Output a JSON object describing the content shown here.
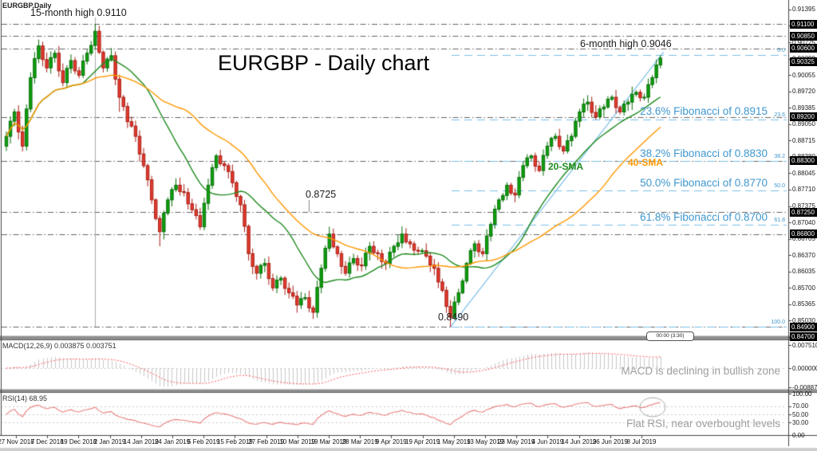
{
  "window": {
    "symbol_label": "EURGBP,Daily",
    "countdown": "00:00 (3:30)"
  },
  "title": "EURGBP - Daily chart",
  "annotations": {
    "high_15m": "15-month high 0.9110",
    "high_6m": "6-month high 0.9046",
    "level_8725": "0.8725",
    "level_8490": "0.8490",
    "sma20": "20-SMA",
    "sma40": "40-SMA",
    "fib_236": "23.6% Fibonacci of 0.8915",
    "fib_382": "38.2% Fibonacci of 0.8830",
    "fib_500": "50.0% Fibonacci of 0.8770",
    "fib_618": "61.8% Fibonacci of 0.8700",
    "macd_note": "MACD is declining in bullish zone",
    "rsi_note": "Flat RSI, near overbought levels"
  },
  "chart_data": {
    "type": "candlestick",
    "symbol": "EURGBP",
    "timeframe": "Daily",
    "title": "EURGBP - Daily chart",
    "x_labels": [
      "27 Nov 2018",
      "7 Dec 2018",
      "19 Dec 2018",
      "2 Jan 2019",
      "14 Jan 2019",
      "24 Jan 2019",
      "5 Feb 2019",
      "15 Feb 2019",
      "27 Feb 2019",
      "10 Mar 2019",
      "19 Mar 2019",
      "28 Mar 2019",
      "9 Apr 2019",
      "19 Apr 2019",
      "1 May 2019",
      "13 May 2019",
      "23 May 2019",
      "4 Jun 2019",
      "14 Jun 2019",
      "26 Jun 2019",
      "8 Jul 2019"
    ],
    "first_open": 0.886,
    "closes": [
      0.888,
      0.8911,
      0.893,
      0.8889,
      0.886,
      0.8936,
      0.9,
      0.9039,
      0.9065,
      0.9037,
      0.902,
      0.9041,
      0.905,
      0.9014,
      0.899,
      0.9019,
      0.9035,
      0.9014,
      0.9005,
      0.9034,
      0.905,
      0.9066,
      0.9095,
      0.9052,
      0.902,
      0.9038,
      0.9045,
      0.8997,
      0.896,
      0.8941,
      0.891,
      0.8901,
      0.888,
      0.8844,
      0.882,
      0.8791,
      0.875,
      0.8712,
      0.8685,
      0.8723,
      0.875,
      0.8771,
      0.878,
      0.8767,
      0.8765,
      0.8742,
      0.873,
      0.8718,
      0.8695,
      0.8743,
      0.878,
      0.8816,
      0.884,
      0.8824,
      0.882,
      0.8808,
      0.8785,
      0.8757,
      0.874,
      0.8696,
      0.864,
      0.8614,
      0.86,
      0.8616,
      0.862,
      0.8589,
      0.857,
      0.8586,
      0.859,
      0.8569,
      0.856,
      0.8553,
      0.8535,
      0.8548,
      0.855,
      0.8529,
      0.852,
      0.8571,
      0.861,
      0.8651,
      0.868,
      0.8654,
      0.864,
      0.8614,
      0.86,
      0.8621,
      0.863,
      0.8617,
      0.8615,
      0.8641,
      0.8655,
      0.8642,
      0.864,
      0.8624,
      0.862,
      0.8643,
      0.8655,
      0.8662,
      0.868,
      0.8664,
      0.866,
      0.8647,
      0.8645,
      0.8646,
      0.8635,
      0.8617,
      0.861,
      0.8582,
      0.8565,
      0.8532,
      0.851,
      0.8541,
      0.856,
      0.8584,
      0.862,
      0.8646,
      0.866,
      0.8644,
      0.864,
      0.8676,
      0.87,
      0.8731,
      0.875,
      0.8759,
      0.878,
      0.8764,
      0.876,
      0.8796,
      0.882,
      0.8836,
      0.884,
      0.8819,
      0.881,
      0.8841,
      0.886,
      0.8876,
      0.888,
      0.8859,
      0.885,
      0.8871,
      0.888,
      0.8911,
      0.893,
      0.8946,
      0.895,
      0.8929,
      0.892,
      0.8936,
      0.894,
      0.8956,
      0.896,
      0.8939,
      0.893,
      0.8946,
      0.895,
      0.8966,
      0.897,
      0.8959,
      0.896,
      0.8986,
      0.9,
      0.9026,
      0.904
    ],
    "wick_overrides": {
      "8": {
        "high": 0.9078
      },
      "22": {
        "high": 0.911
      },
      "28": {
        "low": 0.893
      },
      "38": {
        "low": 0.8655
      },
      "110": {
        "low": 0.849
      },
      "162": {
        "high": 0.9046
      }
    },
    "key_points": {
      "high_15_month": 0.911,
      "high_6_month": 0.9046,
      "swing_low": 0.849,
      "mid_level": 0.8725,
      "last_close": 0.904
    },
    "levels": [
      0.911,
      0.9085,
      0.906,
      0.892,
      0.883,
      0.8725,
      0.868,
      0.849,
      0.847
    ],
    "fibonacci": {
      "swing_high": 0.9046,
      "swing_low": 0.849,
      "lines": [
        {
          "pct": "0.0",
          "price": 0.9046
        },
        {
          "pct": "23.6",
          "price": 0.8915
        },
        {
          "pct": "38.2",
          "price": 0.883
        },
        {
          "pct": "50.0",
          "price": 0.877
        },
        {
          "pct": "61.8",
          "price": 0.87
        },
        {
          "pct": "100.0",
          "price": 0.849
        }
      ]
    },
    "indicators": {
      "sma_periods": [
        20,
        40
      ],
      "macd_label": "MACD(12,26,9) 0.003875 0.003751",
      "macd_params": [
        12,
        26,
        9
      ],
      "macd_main": 0.003875,
      "macd_signal": 0.003751,
      "rsi_label": "RSI(14) 68.95",
      "rsi_period": 14,
      "rsi_value": 68.95,
      "rsi_levels": [
        70,
        50,
        30
      ]
    },
    "axis": {
      "price_ticks": [
        "0.91395",
        "0.91060",
        "0.90725",
        "0.90390",
        "0.90055",
        "0.89720",
        "0.89385",
        "0.89050",
        "0.88715",
        "0.88380",
        "0.88045",
        "0.87710",
        "0.87375",
        "0.87040",
        "0.86705",
        "0.86370",
        "0.86035",
        "0.85700",
        "0.85365",
        "0.85030",
        "0.84695"
      ],
      "boxed_prices": [
        "0.91100",
        "0.90850",
        "0.90600",
        "0.90325",
        "0.89200",
        "0.88300",
        "0.87250",
        "0.86800",
        "0.84900",
        "0.84700"
      ],
      "macd_ticks": [
        "0.007510",
        "0.000000",
        "-0.008874"
      ],
      "rsi_ticks": [
        "100.00",
        "70.00",
        "50.00",
        "30.00",
        "0.00"
      ]
    },
    "colors": {
      "up": "#0da00d",
      "up_border": "#076e07",
      "down": "#e23a2e",
      "down_border": "#a81e14",
      "sma20": "#1e8a1e",
      "sma40": "#ff9800",
      "fib": "#7cc0e8",
      "fib_label": "#3f97cf",
      "level_line": "#3c3c3c",
      "trendline": "#7cc0e8",
      "macd_hist": "#c8c8c8",
      "macd_signal": "#ff5d5d",
      "rsi_line": "#ea8080",
      "note": "#9e9e9e"
    }
  }
}
